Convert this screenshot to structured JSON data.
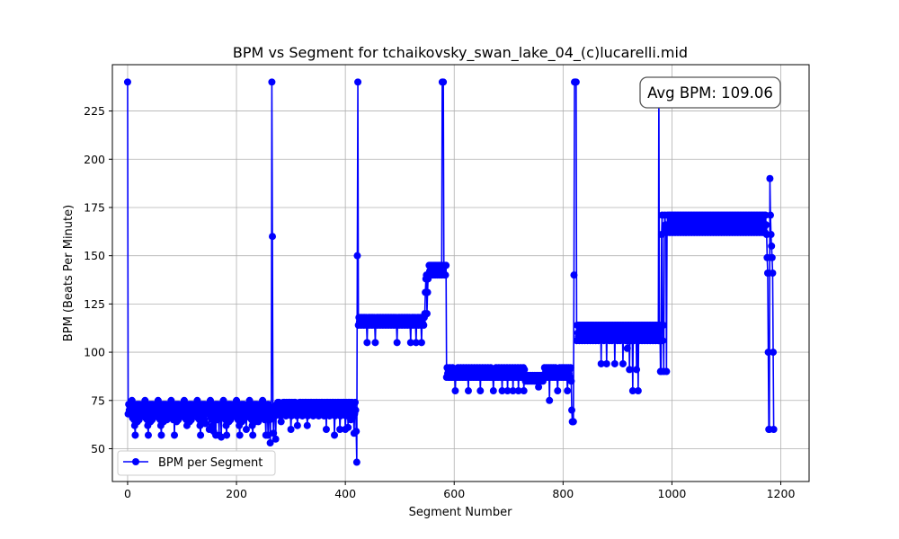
{
  "chart_data": {
    "type": "line",
    "title": "BPM vs Segment for tchaikovsky_swan_lake_04_(c)lucarelli.mid",
    "xlabel": "Segment Number",
    "ylabel": "BPM (Beats Per Minute)",
    "xlim": [
      -28,
      1252
    ],
    "ylim": [
      33,
      249
    ],
    "xticks": [
      0,
      200,
      400,
      600,
      800,
      1000,
      1200
    ],
    "yticks": [
      50,
      75,
      100,
      125,
      150,
      175,
      200,
      225
    ],
    "grid": true,
    "legend_position": "lower-left",
    "series": [
      {
        "name": "BPM per Segment",
        "color": "#0000ff",
        "marker": "circle",
        "segments": [
          {
            "start": 0,
            "end": 0,
            "base": 240,
            "alt": [
              240
            ],
            "dips": []
          },
          {
            "start": 1,
            "end": 264,
            "base": 70,
            "alt": [
              68,
              73,
              70,
              72,
              68,
              73,
              69,
              75,
              66,
              73,
              70,
              65,
              62,
              57,
              70,
              73,
              68,
              64,
              73,
              70,
              65,
              73,
              67,
              70
            ],
            "dips": [
              [
                72,
                65
              ],
              [
                85,
                68
              ],
              [
                110,
                66
              ],
              [
                121,
                68
              ],
              [
                143,
                63
              ],
              [
                150,
                60
              ],
              [
                158,
                59
              ],
              [
                162,
                57
              ],
              [
                168,
                57
              ],
              [
                172,
                56
              ],
              [
                203,
                65
              ],
              [
                218,
                60
              ],
              [
                240,
                64
              ],
              [
                253,
                66
              ],
              [
                258,
                57
              ],
              [
                262,
                53
              ]
            ]
          },
          {
            "start": 265,
            "end": 265,
            "base": 240,
            "alt": [
              240
            ],
            "dips": []
          },
          {
            "start": 266,
            "end": 266,
            "base": 160,
            "alt": [
              160
            ],
            "dips": []
          },
          {
            "start": 267,
            "end": 420,
            "base": 71,
            "alt": [
              68,
              74,
              70,
              72,
              67,
              74,
              70,
              73,
              69,
              74
            ],
            "dips": [
              [
                268,
                58
              ],
              [
                272,
                55
              ],
              [
                282,
                64
              ],
              [
                300,
                60
              ],
              [
                312,
                62
              ],
              [
                330,
                62
              ],
              [
                350,
                68
              ],
              [
                365,
                60
              ],
              [
                380,
                57
              ],
              [
                390,
                60
              ],
              [
                400,
                60
              ],
              [
                405,
                61
              ],
              [
                410,
                65
              ],
              [
                416,
                58
              ],
              [
                420,
                59
              ]
            ]
          },
          {
            "start": 421,
            "end": 421,
            "base": 43,
            "alt": [
              43
            ],
            "dips": []
          },
          {
            "start": 422,
            "end": 422,
            "base": 150,
            "alt": [
              150
            ],
            "dips": []
          },
          {
            "start": 423,
            "end": 423,
            "base": 240,
            "alt": [
              240
            ],
            "dips": []
          },
          {
            "start": 424,
            "end": 545,
            "base": 116,
            "alt": [
              114,
              118,
              116,
              115,
              118
            ],
            "dips": [
              [
                440,
                105
              ],
              [
                455,
                105
              ],
              [
                495,
                105
              ],
              [
                520,
                105
              ],
              [
                530,
                105
              ],
              [
                540,
                105
              ]
            ]
          },
          {
            "start": 546,
            "end": 552,
            "base": 121,
            "alt": [
              120,
              131,
              138,
              140
            ],
            "dips": []
          },
          {
            "start": 553,
            "end": 577,
            "base": 142,
            "alt": [
              140,
              145,
              142,
              145
            ],
            "dips": []
          },
          {
            "start": 578,
            "end": 580,
            "base": 240,
            "alt": [
              240
            ],
            "dips": []
          },
          {
            "start": 581,
            "end": 585,
            "base": 145,
            "alt": [
              145,
              140
            ],
            "dips": []
          },
          {
            "start": 586,
            "end": 730,
            "base": 89,
            "alt": [
              87,
              92,
              89,
              91,
              87
            ],
            "dips": [
              [
                602,
                80
              ],
              [
                626,
                80
              ],
              [
                648,
                80
              ],
              [
                672,
                80
              ],
              [
                688,
                80
              ],
              [
                698,
                80
              ],
              [
                708,
                80
              ],
              [
                718,
                80
              ],
              [
                728,
                80
              ]
            ]
          },
          {
            "start": 731,
            "end": 764,
            "base": 87,
            "alt": [
              85,
              88,
              87,
              86
            ],
            "dips": [
              [
                755,
                82
              ]
            ]
          },
          {
            "start": 765,
            "end": 815,
            "base": 89,
            "alt": [
              87,
              92,
              89,
              91
            ],
            "dips": [
              [
                775,
                75
              ],
              [
                790,
                80
              ],
              [
                808,
                80
              ],
              [
                815,
                85
              ]
            ]
          },
          {
            "start": 816,
            "end": 819,
            "base": 70,
            "alt": [
              70,
              64,
              64,
              64
            ],
            "dips": []
          },
          {
            "start": 820,
            "end": 820,
            "base": 140,
            "alt": [
              140
            ],
            "dips": []
          },
          {
            "start": 821,
            "end": 824,
            "base": 240,
            "alt": [
              240
            ],
            "dips": []
          },
          {
            "start": 825,
            "end": 975,
            "base": 110,
            "alt": [
              106,
              114,
              110,
              108,
              114
            ],
            "dips": [
              [
                870,
                94
              ],
              [
                880,
                94
              ],
              [
                895,
                94
              ],
              [
                910,
                94
              ],
              [
                918,
                102
              ],
              [
                922,
                91
              ],
              [
                928,
                80
              ],
              [
                938,
                80
              ],
              [
                935,
                91
              ]
            ]
          },
          {
            "start": 976,
            "end": 976,
            "base": 240,
            "alt": [
              240
            ],
            "dips": []
          },
          {
            "start": 977,
            "end": 985,
            "base": 110,
            "alt": [
              106,
              114,
              90,
              110,
              161,
              171
            ],
            "dips": [
              [
                980,
                90
              ]
            ]
          },
          {
            "start": 986,
            "end": 1173,
            "base": 166,
            "alt": [
              162,
              171,
              166,
              164,
              171
            ],
            "dips": [
              [
                990,
                90
              ]
            ]
          },
          {
            "start": 1174,
            "end": 1179,
            "base": 155,
            "alt": [
              161,
              149,
              141,
              100,
              60,
              60
            ],
            "dips": []
          },
          {
            "start": 1180,
            "end": 1180,
            "base": 190,
            "alt": [
              190
            ],
            "dips": []
          },
          {
            "start": 1181,
            "end": 1186,
            "base": 161,
            "alt": [
              171,
              161,
              155,
              149,
              141,
              100
            ],
            "dips": []
          },
          {
            "start": 1187,
            "end": 1187,
            "base": 60,
            "alt": [
              60
            ],
            "dips": []
          }
        ]
      }
    ],
    "annotation": {
      "text": "Avg BPM: 109.06",
      "position": "top-right"
    },
    "legend": [
      {
        "label": "BPM per Segment",
        "color": "#0000ff"
      }
    ]
  }
}
